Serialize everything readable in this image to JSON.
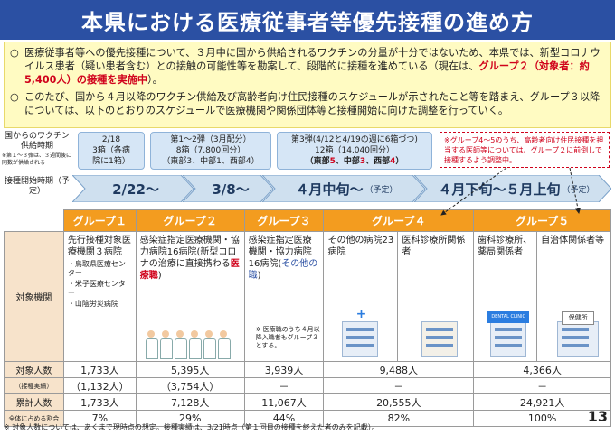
{
  "title": "本県における医療従事者等優先接種の進め方",
  "bullets": [
    {
      "mark": "○",
      "pre": "医療従事者等への優先接種について、３月中に国から供給されるワクチンの分量が十分ではないため、本県では、新型コロナウイルス患者（疑い患者含む）との接触の可能性等を勘案して、段階的に接種を進めている（現在は、",
      "highlight": "グループ２（対象者：約5,400人）の接種を実施中",
      "post": "）。"
    },
    {
      "mark": "○",
      "text": "このたび、国から４月以降のワクチン供給及び高齢者向け住民接種のスケジュールが示されたこと等を踏まえ、グループ３以降については、以下のとおりのスケジュールで医療機関や関係団体等と接種開始に向けた調整を行っていく。"
    }
  ],
  "supply": {
    "label": "国からのワクチン供給時期",
    "note": "※第１～３弾は、３週間後に同数が供給される",
    "b1": {
      "l1": "2/18",
      "l2": "3箱（各病",
      "l3": "院に1箱）"
    },
    "b2": {
      "l1": "第1～2弾（3月配分）",
      "l2": "8箱（7,800回分）",
      "l3": "（東部3、中部1、西部4）"
    },
    "b3": {
      "l1": "第3弾(4/12と4/19の週に6箱づつ)",
      "l2": "12箱（14,040回分）",
      "l3a": "（東部",
      "v1": "5",
      "l3b": "、中部",
      "v2": "3",
      "l3c": "、西部",
      "v3": "4",
      "l3d": "）"
    }
  },
  "note_box": "※グループ4～5のうち、高齢者向け住民接種を担当する医師等については、グループ２に前倒しで接種するよう調整中。",
  "timeline": {
    "label": "接種開始時期（予定）",
    "s1": "2/22～",
    "s2": "3/8～",
    "s3": "４月中旬～",
    "s3small": "（予定）",
    "s4": "４月下旬～５月上旬",
    "s4small": "（予定）"
  },
  "table": {
    "groups": [
      "グループ１",
      "グループ２",
      "グループ３",
      "グループ４",
      "グループ５"
    ],
    "inst_label": "対象機関",
    "g1": {
      "t": "先行接種対象医療機関３病院",
      "s1": "・鳥取県医療センター",
      "s2": "・米子医療センター",
      "s3": "・山陰労災病院"
    },
    "g2": {
      "t1": "感染症指定医療機関・協力病院16病院(新型コロナの治療に直接携わる",
      "t2": "医療職",
      "t3": ")"
    },
    "g3": {
      "t1": "感染症指定医療機関・協力病院16病院(",
      "t2": "その他の職",
      "t3": ")",
      "note": "※ 医療職のうち４月以降入職者もグループ３とする。"
    },
    "g4a": "その他の病院23病院",
    "g4b": "医科診療所関係者",
    "g5a": "歯科診療所、薬局関係者",
    "g5b": "自治体関係者等",
    "clinic_sign": "DENTAL CLINIC",
    "health_sign": "保健所",
    "rows": {
      "target_label": "対象人数",
      "target": [
        "1,733人",
        "5,395人",
        "3,939人",
        "9,488人",
        "4,366人"
      ],
      "done_label": "（接種実績）",
      "done": [
        "（1,132人）",
        "（3,754人）",
        "－",
        "－",
        "－"
      ],
      "cum_label": "累計人数",
      "cum": [
        "1,733人",
        "7,128人",
        "11,067人",
        "20,555人",
        "24,921人"
      ],
      "ratio_label": "全体に占める割合",
      "ratio": [
        "7%",
        "29%",
        "44%",
        "82%",
        "100%"
      ]
    }
  },
  "footnote": "※ 対象人数については、あくまで現時点の想定。接種実績は、3/21時点（第１回目の接種を終えた者のみを記載）。",
  "page_number": "13"
}
